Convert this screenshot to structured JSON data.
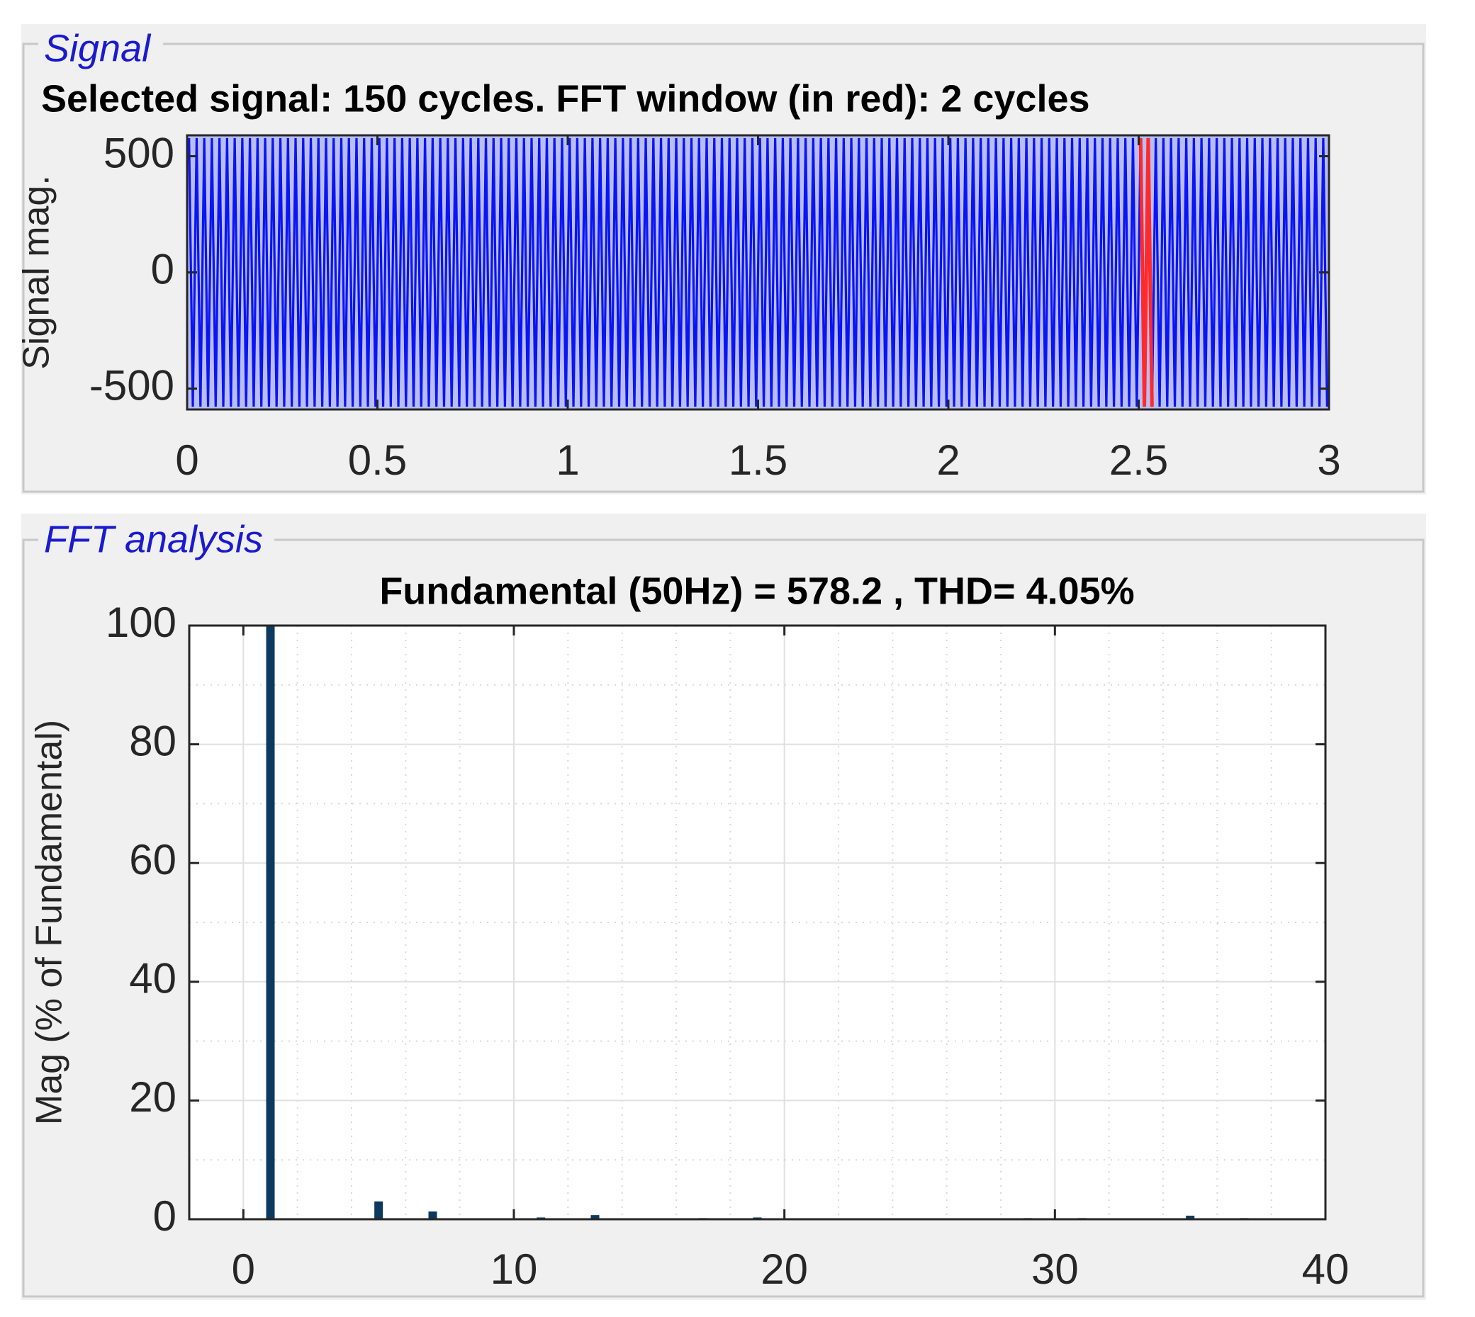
{
  "chart_data": [
    {
      "type": "line",
      "panel": "Signal",
      "title": "Selected signal: 150 cycles. FFT window (in red): 2 cycles",
      "ylabel": "Signal mag.",
      "xlim": [
        0,
        3
      ],
      "xticks": [
        0,
        0.5,
        1,
        1.5,
        2,
        2.5,
        3
      ],
      "ylim": [
        -590,
        590
      ],
      "yticks": [
        -500,
        0,
        500
      ],
      "series": [
        {
          "color": "#0a14f5",
          "x": [
            0.005,
            0.015,
            0.025,
            0.035,
            0.045,
            0.055,
            0.065,
            0.075,
            0.085,
            0.095,
            0.105,
            0.115,
            0.125,
            0.135,
            0.145,
            0.155,
            0.165,
            0.175,
            0.185,
            0.195,
            0.205,
            0.215,
            0.225,
            0.235,
            0.245,
            0.255,
            0.265,
            0.275,
            0.285,
            0.295,
            0.305,
            0.315,
            0.325,
            0.335,
            0.345,
            0.355,
            0.365,
            0.375,
            0.385,
            0.395,
            0.405,
            0.415,
            0.425,
            0.435,
            0.445,
            0.455,
            0.465,
            0.475,
            0.485,
            0.495,
            0.505,
            0.515,
            0.525,
            0.535,
            0.545,
            0.555,
            0.565,
            0.575,
            0.585,
            0.595,
            0.605,
            0.615,
            0.625,
            0.635,
            0.645,
            0.655,
            0.665,
            0.675,
            0.685,
            0.695,
            0.705,
            0.715,
            0.725,
            0.735,
            0.745,
            0.755,
            0.765,
            0.775,
            0.785,
            0.795,
            0.805,
            0.815,
            0.825,
            0.835,
            0.845,
            0.855,
            0.865,
            0.875,
            0.885,
            0.895,
            0.905,
            0.915,
            0.925,
            0.935,
            0.945,
            0.955,
            0.965,
            0.975,
            0.985,
            0.995,
            1.005,
            1.015,
            1.025,
            1.035,
            1.045,
            1.055,
            1.065,
            1.075,
            1.085,
            1.095,
            1.105,
            1.115,
            1.125,
            1.135,
            1.145,
            1.155,
            1.165,
            1.175,
            1.185,
            1.195,
            1.205,
            1.215,
            1.225,
            1.235,
            1.245,
            1.255,
            1.265,
            1.275,
            1.285,
            1.295,
            1.305,
            1.315,
            1.325,
            1.335,
            1.345,
            1.355,
            1.365,
            1.375,
            1.385,
            1.395,
            1.405,
            1.415,
            1.425,
            1.435,
            1.445,
            1.455,
            1.465,
            1.475,
            1.485,
            1.495,
            1.505,
            1.515,
            1.525,
            1.535,
            1.545,
            1.555,
            1.565,
            1.575,
            1.585,
            1.595,
            1.605,
            1.615,
            1.625,
            1.635,
            1.645,
            1.655,
            1.665,
            1.675,
            1.685,
            1.695,
            1.705,
            1.715,
            1.725,
            1.735,
            1.745,
            1.755,
            1.765,
            1.775,
            1.785,
            1.795,
            1.805,
            1.815,
            1.825,
            1.835,
            1.845,
            1.855,
            1.865,
            1.875,
            1.885,
            1.895,
            1.905,
            1.915,
            1.925,
            1.935,
            1.945,
            1.955,
            1.965,
            1.975,
            1.985,
            1.995,
            2.005,
            2.015,
            2.025,
            2.035,
            2.045,
            2.055,
            2.065,
            2.075,
            2.085,
            2.095,
            2.105,
            2.115,
            2.125,
            2.135,
            2.145,
            2.155,
            2.165,
            2.175,
            2.185,
            2.195,
            2.205,
            2.215,
            2.225,
            2.235,
            2.245,
            2.255,
            2.265,
            2.275,
            2.285,
            2.295,
            2.305,
            2.315,
            2.325,
            2.335,
            2.345,
            2.355,
            2.365,
            2.375,
            2.385,
            2.395,
            2.405,
            2.415,
            2.425,
            2.435,
            2.445,
            2.455,
            2.465,
            2.475,
            2.485,
            2.495,
            2.505,
            2.515,
            2.525,
            2.535,
            2.545,
            2.555,
            2.565,
            2.575,
            2.585,
            2.595,
            2.605,
            2.615,
            2.625,
            2.635,
            2.645,
            2.655,
            2.665,
            2.675,
            2.685,
            2.695,
            2.705,
            2.715,
            2.725,
            2.735,
            2.745,
            2.755,
            2.765,
            2.775,
            2.785,
            2.795,
            2.805,
            2.815,
            2.825,
            2.835,
            2.845,
            2.855,
            2.865,
            2.875,
            2.885,
            2.895,
            2.905,
            2.915,
            2.925,
            2.935,
            2.945,
            2.955,
            2.965,
            2.975,
            2.985,
            2.995
          ],
          "values": [
            578,
            -578,
            578,
            -578,
            578,
            -578,
            578,
            -578,
            578,
            -578,
            578,
            -578,
            578,
            -578,
            578,
            -578,
            578,
            -578,
            578,
            -578,
            578,
            -578,
            578,
            -578,
            578,
            -578,
            578,
            -578,
            578,
            -578,
            578,
            -578,
            578,
            -578,
            578,
            -578,
            578,
            -578,
            578,
            -578,
            578,
            -578,
            578,
            -578,
            578,
            -578,
            578,
            -578,
            578,
            -578,
            578,
            -578,
            578,
            -578,
            578,
            -578,
            578,
            -578,
            578,
            -578,
            578,
            -578,
            578,
            -578,
            578,
            -578,
            578,
            -578,
            578,
            -578,
            578,
            -578,
            578,
            -578,
            578,
            -578,
            578,
            -578,
            578,
            -578,
            578,
            -578,
            578,
            -578,
            578,
            -578,
            578,
            -578,
            578,
            -578,
            578,
            -578,
            578,
            -578,
            578,
            -578,
            578,
            -578,
            578,
            -578,
            578,
            -578,
            578,
            -578,
            578,
            -578,
            578,
            -578,
            578,
            -578,
            578,
            -578,
            578,
            -578,
            578,
            -578,
            578,
            -578,
            578,
            -578,
            578,
            -578,
            578,
            -578,
            578,
            -578,
            578,
            -578,
            578,
            -578,
            578,
            -578,
            578,
            -578,
            578,
            -578,
            578,
            -578,
            578,
            -578,
            578,
            -578,
            578,
            -578,
            578,
            -578,
            578,
            -578,
            578,
            -578,
            578,
            -578,
            578,
            -578,
            578,
            -578,
            578,
            -578,
            578,
            -578,
            578,
            -578,
            578,
            -578,
            578,
            -578,
            578,
            -578,
            578,
            -578,
            578,
            -578,
            578,
            -578,
            578,
            -578,
            578,
            -578,
            578,
            -578,
            578,
            -578,
            578,
            -578,
            578,
            -578,
            578,
            -578,
            578,
            -578,
            578,
            -578,
            578,
            -578,
            578,
            -578,
            578,
            -578,
            578,
            -578,
            578,
            -578,
            578,
            -578,
            578,
            -578,
            578,
            -578,
            578,
            -578,
            578,
            -578,
            578,
            -578,
            578,
            -578,
            578,
            -578,
            578,
            -578,
            578,
            -578,
            578,
            -578,
            578,
            -578,
            578,
            -578,
            578,
            -578,
            578,
            -578,
            578,
            -578,
            578,
            -578,
            578,
            -578,
            578,
            -578,
            578,
            -578,
            578,
            -578,
            578,
            -578,
            578,
            -578,
            578,
            -578,
            578,
            -578,
            578,
            -578,
            578,
            -578,
            578,
            -578,
            578,
            -578,
            578,
            -578,
            578,
            -578,
            578,
            -578,
            578,
            -578,
            578,
            -578,
            578,
            -578,
            578,
            -578,
            578,
            -578,
            578,
            -578,
            578,
            -578,
            578,
            -578,
            578,
            -578,
            578,
            -578,
            578,
            -578,
            578,
            -578,
            578,
            -578,
            578,
            -578,
            578,
            -578,
            578,
            -578,
            578,
            -578
          ]
        },
        {
          "color": "#ff2a2a",
          "x": [
            2.505,
            2.515,
            2.525,
            2.535
          ],
          "values": [
            578,
            -578,
            578,
            -578
          ]
        }
      ]
    },
    {
      "type": "bar",
      "panel": "FFT analysis",
      "title": "Fundamental (50Hz) = 578.2 , THD= 4.05%",
      "ylabel": "Mag (% of Fundamental)",
      "xlim": [
        -2,
        40
      ],
      "xticks": [
        0,
        10,
        20,
        30,
        40
      ],
      "ylim": [
        0,
        100
      ],
      "yticks": [
        0,
        20,
        40,
        60,
        80,
        100
      ],
      "grid": true,
      "xminor": [
        -2,
        2,
        4,
        6,
        8,
        12,
        14,
        16,
        18,
        22,
        24,
        26,
        28,
        32,
        34,
        36,
        38
      ],
      "yminor": [
        10,
        30,
        50,
        70,
        90
      ],
      "color": "#0c3a5e",
      "x": [
        1,
        5,
        7,
        11,
        13,
        17,
        19,
        29,
        31,
        35,
        37
      ],
      "values": [
        100,
        3,
        1.3,
        0.3,
        0.7,
        0.2,
        0.3,
        0.2,
        0.2,
        0.6,
        0.2
      ]
    }
  ]
}
